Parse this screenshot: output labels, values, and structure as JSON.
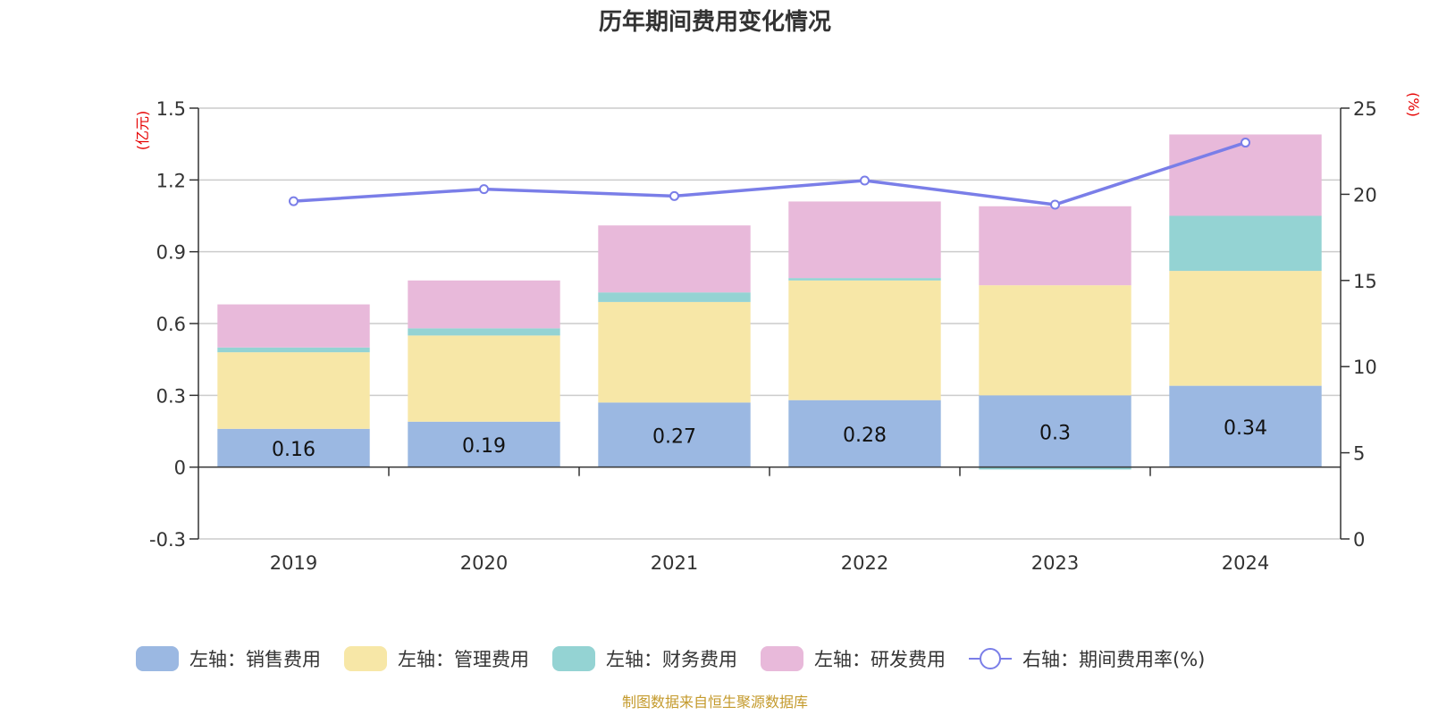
{
  "chart_data": {
    "type": "bar",
    "stacked": true,
    "title": "历年期间费用变化情况",
    "left_axis_unit": "(亿元)",
    "right_axis_unit": "(%)",
    "categories": [
      "2019",
      "2020",
      "2021",
      "2022",
      "2023",
      "2024"
    ],
    "left_ylim": [
      -0.3,
      1.5
    ],
    "left_yticks": [
      "-0.3",
      "0",
      "0.3",
      "0.6",
      "0.9",
      "1.2",
      "1.5"
    ],
    "right_ylim": [
      0,
      25
    ],
    "right_yticks": [
      "0",
      "5",
      "10",
      "15",
      "20",
      "25"
    ],
    "grid": true,
    "legend_position": "bottom",
    "series": [
      {
        "name": "左轴：销售费用",
        "axis": "left",
        "color": "#9bb8e2",
        "values": [
          0.16,
          0.19,
          0.27,
          0.28,
          0.3,
          0.34
        ],
        "labels": [
          "0.16",
          "0.19",
          "0.27",
          "0.28",
          "0.3",
          "0.34"
        ]
      },
      {
        "name": "左轴：管理费用",
        "axis": "left",
        "color": "#f7e7a7",
        "values": [
          0.32,
          0.36,
          0.42,
          0.5,
          0.46,
          0.48
        ]
      },
      {
        "name": "左轴：财务费用",
        "axis": "left",
        "color": "#94d3d3",
        "values": [
          0.02,
          0.03,
          0.04,
          0.01,
          -0.01,
          0.23
        ]
      },
      {
        "name": "左轴：研发费用",
        "axis": "left",
        "color": "#e8b9da",
        "values": [
          0.18,
          0.2,
          0.28,
          0.32,
          0.33,
          0.34
        ]
      },
      {
        "name": "右轴：期间费用率(%)",
        "axis": "right",
        "type": "line",
        "color": "#7a7ee8",
        "values": [
          19.6,
          20.3,
          19.9,
          20.8,
          19.4,
          23.0
        ]
      }
    ]
  },
  "source": "制图数据来自恒生聚源数据库"
}
